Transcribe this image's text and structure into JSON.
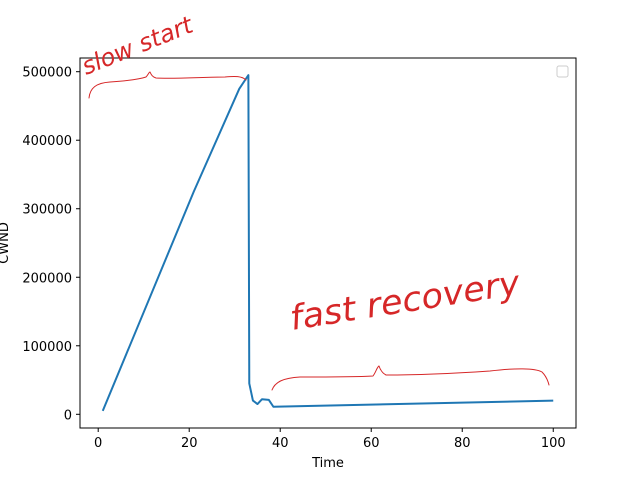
{
  "chart_data": {
    "type": "line",
    "xlabel": "Time",
    "ylabel": "CWND",
    "xlim": [
      -4,
      105
    ],
    "ylim": [
      -20000,
      520000
    ],
    "xticks": [
      0,
      20,
      40,
      60,
      80,
      100
    ],
    "yticks": [
      0,
      100000,
      200000,
      300000,
      400000,
      500000
    ],
    "grid": false,
    "legend": "top-right, empty",
    "series_color": "#1f77b4",
    "annotation_color": "#d62728",
    "x": [
      1,
      21,
      31,
      33,
      33.2,
      34,
      35,
      36,
      37.5,
      38.5,
      100
    ],
    "y": [
      5000,
      325000,
      475000,
      495000,
      45000,
      20000,
      15000,
      22000,
      21000,
      11000,
      20000
    ],
    "annotations": [
      {
        "text": "slow start",
        "style": "handwritten"
      },
      {
        "text": "fast recovery",
        "style": "handwritten"
      }
    ]
  }
}
